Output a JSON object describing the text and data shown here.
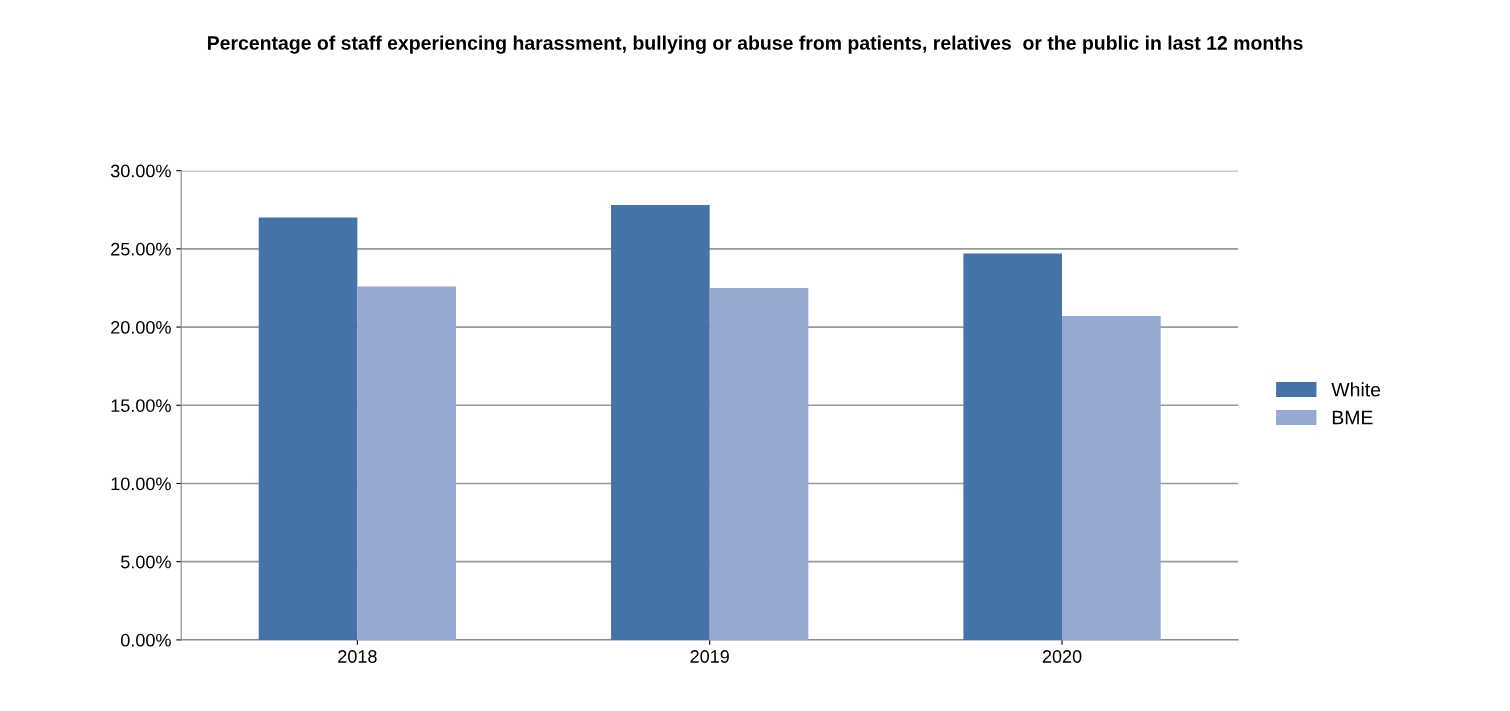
{
  "chart_data": {
    "type": "bar",
    "title": "Percentage of staff experiencing harassment, bullying or abuse from patients, relatives  or the public in last 12 months",
    "categories": [
      "2018",
      "2019",
      "2020"
    ],
    "series": [
      {
        "name": "White",
        "color": "#4573a7",
        "values": [
          27.0,
          27.8,
          24.7
        ]
      },
      {
        "name": "BME",
        "color": "#95a9d3",
        "values": [
          22.6,
          22.5,
          20.7
        ]
      }
    ],
    "ylim": [
      0,
      30
    ],
    "yticks": [
      {
        "value": 0,
        "label": "0.00%"
      },
      {
        "value": 5,
        "label": "5.00%"
      },
      {
        "value": 10,
        "label": "10.00%"
      },
      {
        "value": 15,
        "label": "15.00%"
      },
      {
        "value": 20,
        "label": "20.00%"
      },
      {
        "value": 25,
        "label": "25.00%"
      },
      {
        "value": 30,
        "label": "30.00%"
      }
    ],
    "grid": "y",
    "legend": "right"
  }
}
